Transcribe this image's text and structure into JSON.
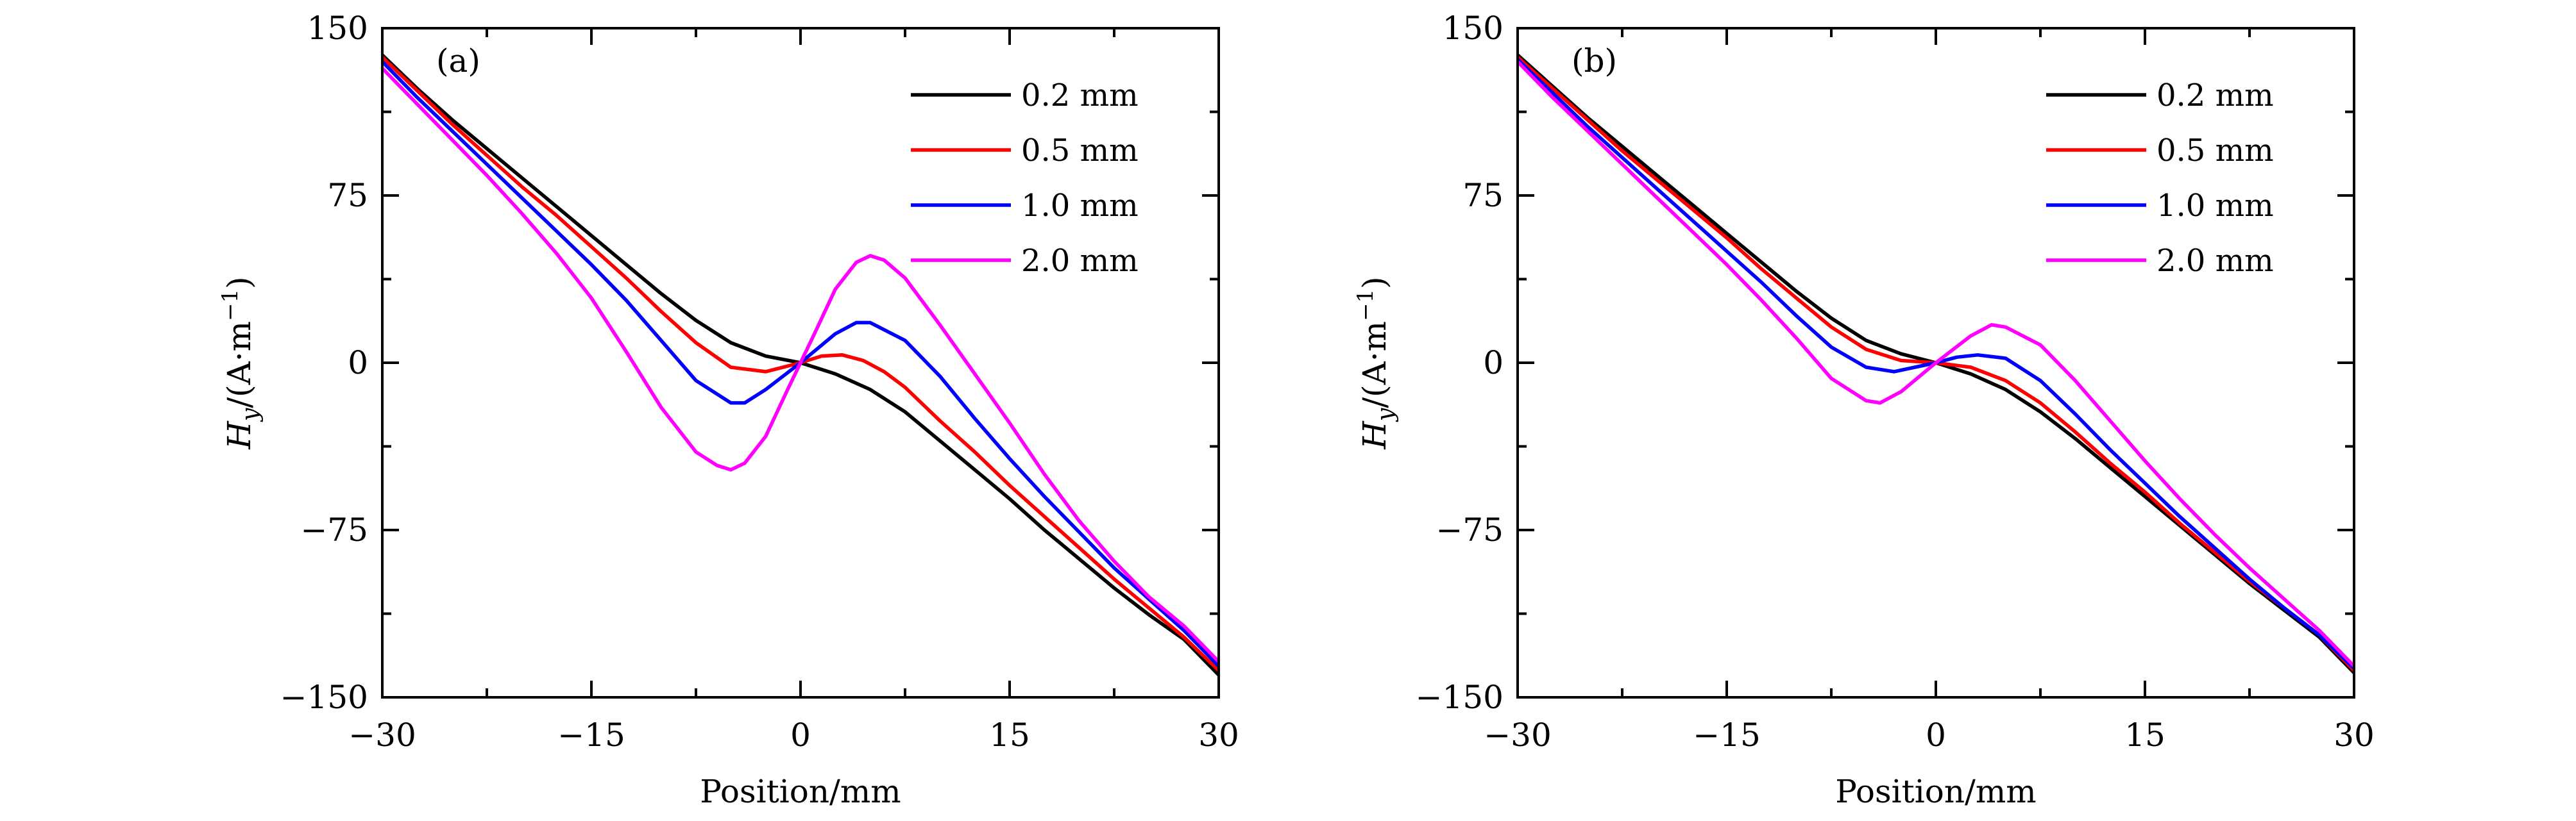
{
  "chart_data": [
    {
      "type": "line",
      "panel_label": "(a)",
      "xlabel": "Position/mm",
      "ylabel_prefix": "H",
      "ylabel_sub": "y",
      "ylabel_mid": "/(A·m",
      "ylabel_sup": "−1",
      "ylabel_suffix": ")",
      "xlim": [
        -30,
        30
      ],
      "ylim": [
        -150,
        150
      ],
      "x_ticks": [
        -30,
        -15,
        0,
        15,
        30
      ],
      "x_tick_labels": [
        "−30",
        "−15",
        "0",
        "15",
        "30"
      ],
      "y_ticks": [
        150,
        75,
        0,
        -75,
        -150
      ],
      "y_tick_labels": [
        "150",
        "75",
        "0",
        "−75",
        "−150"
      ],
      "legend_position": "top-right",
      "series": [
        {
          "name": "0.2 mm",
          "color": "#000000",
          "x": [
            -30,
            -27.5,
            -25,
            -22.5,
            -20,
            -17.5,
            -15,
            -12.5,
            -10,
            -7.5,
            -5,
            -2.5,
            0,
            2.5,
            5,
            7.5,
            10,
            12.5,
            15,
            17.5,
            20,
            22.5,
            25,
            27.5,
            30
          ],
          "y": [
            138,
            123,
            109,
            96,
            83,
            70,
            57,
            44,
            31,
            19,
            9,
            3,
            0,
            -5,
            -12,
            -22,
            -35,
            -48,
            -61,
            -75,
            -88,
            -101,
            -113,
            -124,
            -140
          ]
        },
        {
          "name": "0.5 mm",
          "color": "#ff0000",
          "x": [
            -30,
            -27.5,
            -25,
            -22.5,
            -20,
            -17.5,
            -15,
            -12.5,
            -10,
            -7.5,
            -5,
            -2.5,
            0,
            1.5,
            3,
            4.5,
            6,
            7.5,
            10,
            12.5,
            15,
            17.5,
            20,
            22.5,
            25,
            27.5,
            30
          ],
          "y": [
            137,
            122,
            107,
            93,
            79,
            66,
            52,
            38,
            23,
            9,
            -2,
            -4,
            0,
            3,
            3.5,
            1,
            -4,
            -11,
            -26,
            -40,
            -55,
            -69,
            -83,
            -97,
            -110,
            -123,
            -138
          ]
        },
        {
          "name": "1.0 mm",
          "color": "#0000ff",
          "x": [
            -30,
            -27.5,
            -25,
            -22.5,
            -20,
            -17.5,
            -15,
            -12.5,
            -10,
            -7.5,
            -5,
            -4,
            -2.5,
            0,
            2.5,
            4,
            5,
            7.5,
            10,
            12.5,
            15,
            17.5,
            20,
            22.5,
            25,
            27.5,
            30
          ],
          "y": [
            135,
            119,
            104,
            89,
            74,
            59,
            44,
            28,
            10,
            -8,
            -18,
            -18,
            -12,
            0,
            13,
            18,
            18,
            10,
            -6,
            -25,
            -43,
            -60,
            -76,
            -92,
            -106,
            -120,
            -136
          ]
        },
        {
          "name": "2.0 mm",
          "color": "#ff00ff",
          "x": [
            -30,
            -27.5,
            -25,
            -22.5,
            -20,
            -17.5,
            -15,
            -12.5,
            -10,
            -7.5,
            -6,
            -5,
            -4,
            -2.5,
            -1,
            0,
            1,
            2.5,
            4,
            5,
            6,
            7.5,
            10,
            12.5,
            15,
            17.5,
            20,
            22.5,
            25,
            27.5,
            30
          ],
          "y": [
            132,
            116,
            100,
            84,
            67,
            49,
            29,
            5,
            -20,
            -40,
            -46,
            -48,
            -45,
            -33,
            -13,
            0,
            13,
            33,
            45,
            48,
            46,
            38,
            17,
            -5,
            -27,
            -50,
            -71,
            -89,
            -105,
            -118,
            -134
          ]
        }
      ]
    },
    {
      "type": "line",
      "panel_label": "(b)",
      "xlabel": "Position/mm",
      "ylabel_prefix": "H",
      "ylabel_sub": "y",
      "ylabel_mid": "/(A·m",
      "ylabel_sup": "−1",
      "ylabel_suffix": ")",
      "xlim": [
        -30,
        30
      ],
      "ylim": [
        -150,
        150
      ],
      "x_ticks": [
        -30,
        -15,
        0,
        15,
        30
      ],
      "x_tick_labels": [
        "−30",
        "−15",
        "0",
        "15",
        "30"
      ],
      "y_ticks": [
        150,
        75,
        0,
        -75,
        -150
      ],
      "y_tick_labels": [
        "150",
        "75",
        "0",
        "−75",
        "−150"
      ],
      "legend_position": "top-right",
      "series": [
        {
          "name": "0.2 mm",
          "color": "#000000",
          "x": [
            -30,
            -27.5,
            -25,
            -22.5,
            -20,
            -17.5,
            -15,
            -12.5,
            -10,
            -7.5,
            -5,
            -2.5,
            0,
            2.5,
            5,
            7.5,
            10,
            12.5,
            15,
            17.5,
            20,
            22.5,
            25,
            27.5,
            30
          ],
          "y": [
            138,
            124,
            110,
            97,
            84,
            71,
            58,
            45,
            32,
            20,
            10,
            4,
            0,
            -5,
            -12,
            -22,
            -34,
            -47,
            -60,
            -73,
            -86,
            -99,
            -111,
            -123,
            -139
          ]
        },
        {
          "name": "0.5 mm",
          "color": "#ff0000",
          "x": [
            -30,
            -27.5,
            -25,
            -22.5,
            -20,
            -17.5,
            -15,
            -12.5,
            -10,
            -7.5,
            -5,
            -2.5,
            0,
            2.5,
            5,
            7.5,
            10,
            12.5,
            15,
            17.5,
            20,
            22.5,
            25,
            27.5,
            30
          ],
          "y": [
            137,
            123,
            109,
            95,
            82,
            69,
            56,
            42,
            29,
            16,
            6,
            1,
            0,
            -2,
            -8,
            -18,
            -31,
            -45,
            -58,
            -72,
            -85,
            -98,
            -110,
            -122,
            -138
          ]
        },
        {
          "name": "1.0 mm",
          "color": "#0000ff",
          "x": [
            -30,
            -27.5,
            -25,
            -22.5,
            -20,
            -17.5,
            -15,
            -12.5,
            -10,
            -7.5,
            -5,
            -3,
            -1.5,
            0,
            1.5,
            3,
            5,
            7.5,
            10,
            12.5,
            15,
            17.5,
            20,
            22.5,
            25,
            27.5,
            30
          ],
          "y": [
            136,
            121,
            106,
            92,
            78,
            64,
            50,
            36,
            21,
            7,
            -2,
            -4,
            -2,
            0,
            2.5,
            3.5,
            2,
            -8,
            -23,
            -39,
            -54,
            -69,
            -83,
            -97,
            -110,
            -122,
            -137
          ]
        },
        {
          "name": "2.0 mm",
          "color": "#ff00ff",
          "x": [
            -30,
            -27.5,
            -25,
            -22.5,
            -20,
            -17.5,
            -15,
            -12.5,
            -10,
            -7.5,
            -5,
            -4,
            -2.5,
            0,
            2.5,
            4,
            5,
            7.5,
            10,
            12.5,
            15,
            17.5,
            20,
            22.5,
            25,
            27.5,
            30
          ],
          "y": [
            135,
            119,
            104,
            89,
            74,
            59,
            44,
            28,
            11,
            -7,
            -17,
            -18,
            -13,
            0,
            12,
            17,
            16,
            8,
            -8,
            -26,
            -44,
            -61,
            -77,
            -92,
            -106,
            -120,
            -136
          ]
        }
      ]
    }
  ]
}
